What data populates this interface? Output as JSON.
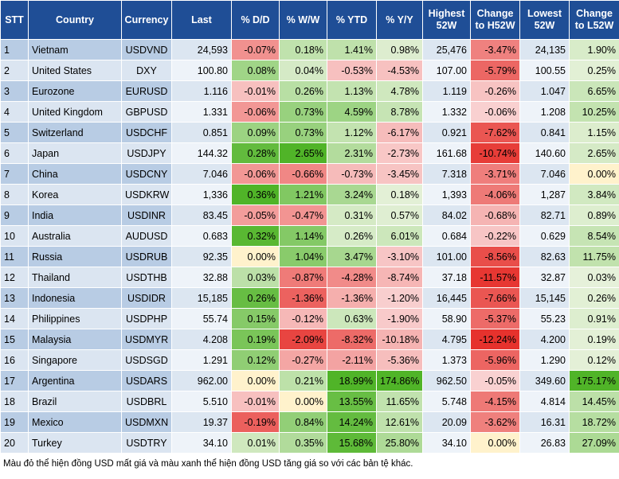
{
  "header": {
    "columns": [
      "STT",
      "Country",
      "Currency",
      "Last",
      "% D/D",
      "% W/W",
      "% YTD",
      "% Y/Y",
      "Highest 52W",
      "Change to H52W",
      "Lowest 52W",
      "Change to L52W"
    ]
  },
  "table": {
    "rows": [
      [
        "1",
        "Vietnam",
        "USDVND",
        "24,593",
        "-0.07%",
        "0.18%",
        "1.41%",
        "0.98%",
        "25,476",
        "-3.47%",
        "24,135",
        "1.90%"
      ],
      [
        "2",
        "United States",
        "DXY",
        "100.80",
        "0.08%",
        "0.04%",
        "-0.53%",
        "-4.53%",
        "107.00",
        "-5.79%",
        "100.55",
        "0.25%"
      ],
      [
        "3",
        "Eurozone",
        "EURUSD",
        "1.116",
        "-0.01%",
        "0.26%",
        "1.13%",
        "4.78%",
        "1.119",
        "-0.26%",
        "1.047",
        "6.65%"
      ],
      [
        "4",
        "United Kingdom",
        "GBPUSD",
        "1.331",
        "-0.06%",
        "0.73%",
        "4.59%",
        "8.78%",
        "1.332",
        "-0.06%",
        "1.208",
        "10.25%"
      ],
      [
        "5",
        "Switzerland",
        "USDCHF",
        "0.851",
        "0.09%",
        "0.73%",
        "1.12%",
        "-6.17%",
        "0.921",
        "-7.62%",
        "0.841",
        "1.15%"
      ],
      [
        "6",
        "Japan",
        "USDJPY",
        "144.32",
        "0.28%",
        "2.65%",
        "2.31%",
        "-2.73%",
        "161.68",
        "-10.74%",
        "140.60",
        "2.65%"
      ],
      [
        "7",
        "China",
        "USDCNY",
        "7.046",
        "-0.06%",
        "-0.66%",
        "-0.73%",
        "-3.45%",
        "7.318",
        "-3.71%",
        "7.046",
        "0.00%"
      ],
      [
        "8",
        "Korea",
        "USDKRW",
        "1,336",
        "0.36%",
        "1.21%",
        "3.24%",
        "0.18%",
        "1,393",
        "-4.06%",
        "1,287",
        "3.84%"
      ],
      [
        "9",
        "India",
        "USDINR",
        "83.45",
        "-0.05%",
        "-0.47%",
        "0.31%",
        "0.57%",
        "84.02",
        "-0.68%",
        "82.71",
        "0.89%"
      ],
      [
        "10",
        "Australia",
        "AUDUSD",
        "0.683",
        "0.32%",
        "1.14%",
        "0.26%",
        "6.01%",
        "0.684",
        "-0.22%",
        "0.629",
        "8.54%"
      ],
      [
        "11",
        "Russia",
        "USDRUB",
        "92.35",
        "0.00%",
        "1.04%",
        "3.47%",
        "-3.10%",
        "101.00",
        "-8.56%",
        "82.63",
        "11.75%"
      ],
      [
        "12",
        "Thailand",
        "USDTHB",
        "32.88",
        "0.03%",
        "-0.87%",
        "-4.28%",
        "-8.74%",
        "37.18",
        "-11.57%",
        "32.87",
        "0.03%"
      ],
      [
        "13",
        "Indonesia",
        "USDIDR",
        "15,185",
        "0.26%",
        "-1.36%",
        "-1.36%",
        "-1.20%",
        "16,445",
        "-7.66%",
        "15,145",
        "0.26%"
      ],
      [
        "14",
        "Philippines",
        "USDPHP",
        "55.74",
        "0.15%",
        "-0.12%",
        "0.63%",
        "-1.90%",
        "58.90",
        "-5.37%",
        "55.23",
        "0.91%"
      ],
      [
        "15",
        "Malaysia",
        "USDMYR",
        "4.208",
        "0.19%",
        "-2.09%",
        "-8.32%",
        "-10.18%",
        "4.795",
        "-12.24%",
        "4.200",
        "0.19%"
      ],
      [
        "16",
        "Singapore",
        "USDSGD",
        "1.291",
        "0.12%",
        "-0.27%",
        "-2.11%",
        "-5.36%",
        "1.373",
        "-5.96%",
        "1.290",
        "0.12%"
      ],
      [
        "17",
        "Argentina",
        "USDARS",
        "962.00",
        "0.00%",
        "0.21%",
        "18.99%",
        "174.86%",
        "962.50",
        "-0.05%",
        "349.60",
        "175.17%"
      ],
      [
        "18",
        "Brazil",
        "USDBRL",
        "5.510",
        "-0.01%",
        "0.00%",
        "13.55%",
        "11.65%",
        "5.748",
        "-4.15%",
        "4.814",
        "14.45%"
      ],
      [
        "19",
        "Mexico",
        "USDMXN",
        "19.37",
        "-0.19%",
        "0.84%",
        "14.24%",
        "12.61%",
        "20.09",
        "-3.62%",
        "16.31",
        "18.72%"
      ],
      [
        "20",
        "Turkey",
        "USDTRY",
        "34.10",
        "0.01%",
        "0.35%",
        "15.68%",
        "25.80%",
        "34.10",
        "0.00%",
        "26.83",
        "27.09%"
      ]
    ]
  },
  "footnote": "Màu đỏ thể hiện đồng USD mất giá và màu xanh thể hiện đồng USD tăng giá so với các bản tệ khác."
}
